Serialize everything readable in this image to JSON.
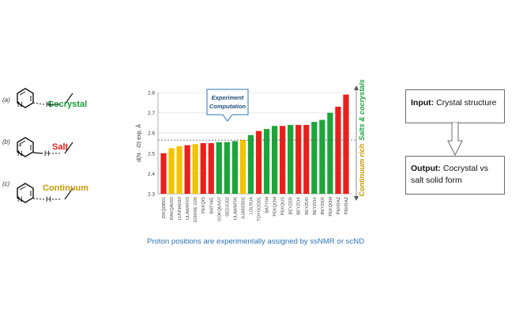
{
  "panels": [
    {
      "letter": "(a)",
      "label": "Cocrystal",
      "color": "#1a9d3a"
    },
    {
      "letter": "(b)",
      "label": "Salt",
      "color": "#e02020"
    },
    {
      "letter": "(c)",
      "label": "Continuum",
      "color": "#c79a00"
    }
  ],
  "atoms": {
    "n": "N",
    "h": "H",
    "plus": "+",
    "minus": "−"
  },
  "callout": {
    "line1": "Experiment",
    "line2": "Computation"
  },
  "side_labels": {
    "top": "Salts & cocrystals",
    "bottom": "Continuum rich"
  },
  "caption": "Proton positions are experimentally assigned by ssNMR or scND",
  "input_box": {
    "bold": "Input:",
    "text": " Crystal structure"
  },
  "output_box": {
    "bold": "Output:",
    "text": " Cocrystal vs salt solid form"
  },
  "colors": {
    "green": "#1fa43c",
    "red": "#e8201c",
    "yellow": "#f2c400",
    "blue": "#2e75b6",
    "orange": "#c79a00"
  },
  "chart_data": {
    "type": "bar",
    "ylabel": "d(N···O) exp, Å",
    "ylim": [
      2.3,
      2.8
    ],
    "yticks": [
      2.3,
      2.4,
      2.5,
      2.6,
      2.7,
      2.8
    ],
    "categories": [
      "ZIKQOB01",
      "RAKQAV03",
      "LUNNAH10",
      "ULAWAF03",
      "GOKRE G05",
      "PEKQIS",
      "BATYAE",
      "GOKQUV07",
      "SEDJIJ02",
      "ULAWAF05",
      "AJAKEB02",
      "LOLSUA",
      "TOYGOO01",
      "BATYIM",
      "PEKQOM",
      "PEKQUS",
      "BEYZER",
      "BEYZOX",
      "BEYZUD",
      "BEYZOX",
      "BEYZER",
      "PEKQOM",
      "PEKRAZ",
      "PEKRAZ"
    ],
    "values": [
      2.5,
      2.525,
      2.535,
      2.54,
      2.545,
      2.55,
      2.55,
      2.555,
      2.555,
      2.56,
      2.565,
      2.59,
      2.61,
      2.62,
      2.635,
      2.635,
      2.64,
      2.64,
      2.64,
      2.655,
      2.665,
      2.7,
      2.73,
      2.79
    ],
    "bar_colors": [
      "#e8201c",
      "#f2c400",
      "#f2c400",
      "#e8201c",
      "#f2c400",
      "#e8201c",
      "#e8201c",
      "#1fa43c",
      "#1fa43c",
      "#1fa43c",
      "#f2c400",
      "#1fa43c",
      "#e8201c",
      "#1fa43c",
      "#1fa43c",
      "#e8201c",
      "#1fa43c",
      "#e8201c",
      "#e8201c",
      "#1fa43c",
      "#1fa43c",
      "#1fa43c",
      "#e8201c",
      "#e8201c"
    ],
    "threshold": 2.565,
    "grid": true
  }
}
